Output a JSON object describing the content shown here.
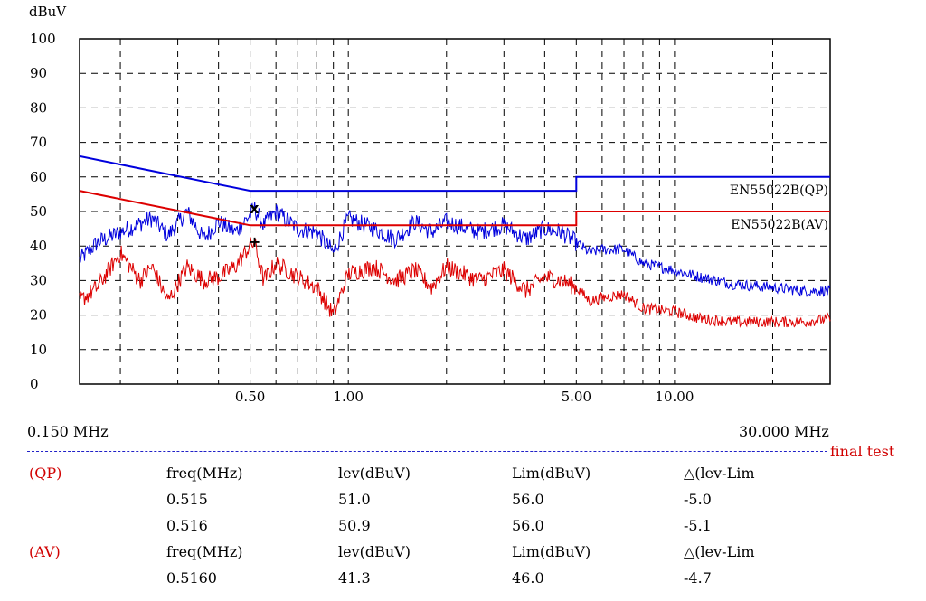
{
  "chart_data": {
    "type": "line",
    "ylabel": "dBuV",
    "ylim": [
      0,
      100
    ],
    "xlim_mhz": [
      0.15,
      30.0
    ],
    "x_scale": "log",
    "yticks": [
      "0",
      "10",
      "20",
      "30",
      "40",
      "50",
      "60",
      "70",
      "80",
      "90",
      "100"
    ],
    "xticks": [
      {
        "value": 0.5,
        "label": "0.50"
      },
      {
        "value": 1.0,
        "label": "1.00"
      },
      {
        "value": 5.0,
        "label": "5.00"
      },
      {
        "value": 10.0,
        "label": "10.00"
      }
    ],
    "x_start_label": "0.150 MHz",
    "x_end_label": "30.000 MHz",
    "grid": true,
    "colors": {
      "qp": "#0000dd",
      "av": "#dd0000"
    },
    "limits": [
      {
        "name": "EN55022B(QP)",
        "points": [
          [
            0.15,
            66
          ],
          [
            0.5,
            56
          ],
          [
            5,
            56
          ],
          [
            5,
            60
          ],
          [
            30,
            60
          ]
        ]
      },
      {
        "name": "EN55022B(AV)",
        "points": [
          [
            0.15,
            56
          ],
          [
            0.5,
            46
          ],
          [
            5,
            46
          ],
          [
            5,
            50
          ],
          [
            30,
            50
          ]
        ]
      }
    ],
    "series": [
      {
        "key": "qp",
        "points": [
          [
            0.15,
            36
          ],
          [
            0.17,
            41
          ],
          [
            0.2,
            44
          ],
          [
            0.25,
            48
          ],
          [
            0.28,
            43
          ],
          [
            0.32,
            50
          ],
          [
            0.36,
            42
          ],
          [
            0.4,
            47
          ],
          [
            0.45,
            44
          ],
          [
            0.5,
            49
          ],
          [
            0.515,
            51
          ],
          [
            0.55,
            46
          ],
          [
            0.6,
            50
          ],
          [
            0.7,
            45
          ],
          [
            0.8,
            44
          ],
          [
            0.9,
            38
          ],
          [
            1.0,
            48
          ],
          [
            1.2,
            45
          ],
          [
            1.4,
            42
          ],
          [
            1.6,
            47
          ],
          [
            1.8,
            44
          ],
          [
            2.0,
            47
          ],
          [
            2.5,
            44
          ],
          [
            3.0,
            46
          ],
          [
            3.5,
            42
          ],
          [
            4.0,
            45
          ],
          [
            4.5,
            44
          ],
          [
            5.0,
            41
          ],
          [
            5.5,
            38
          ],
          [
            6.0,
            39
          ],
          [
            7.0,
            39
          ],
          [
            8.0,
            35
          ],
          [
            10,
            33
          ],
          [
            12,
            31
          ],
          [
            15,
            29
          ],
          [
            20,
            28
          ],
          [
            25,
            27
          ],
          [
            30,
            27
          ]
        ]
      },
      {
        "key": "av",
        "points": [
          [
            0.15,
            24
          ],
          [
            0.17,
            28
          ],
          [
            0.2,
            38
          ],
          [
            0.23,
            30
          ],
          [
            0.25,
            34
          ],
          [
            0.28,
            24
          ],
          [
            0.32,
            34
          ],
          [
            0.36,
            30
          ],
          [
            0.4,
            31
          ],
          [
            0.45,
            34
          ],
          [
            0.5,
            40
          ],
          [
            0.515,
            41
          ],
          [
            0.55,
            30
          ],
          [
            0.6,
            35
          ],
          [
            0.7,
            31
          ],
          [
            0.8,
            28
          ],
          [
            0.9,
            20
          ],
          [
            1.0,
            32
          ],
          [
            1.2,
            34
          ],
          [
            1.4,
            30
          ],
          [
            1.6,
            33
          ],
          [
            1.8,
            28
          ],
          [
            2.0,
            34
          ],
          [
            2.5,
            30
          ],
          [
            3.0,
            33
          ],
          [
            3.5,
            27
          ],
          [
            4.0,
            31
          ],
          [
            4.5,
            30
          ],
          [
            5.0,
            28
          ],
          [
            5.5,
            24
          ],
          [
            6.0,
            25
          ],
          [
            7.0,
            26
          ],
          [
            8.0,
            22
          ],
          [
            10,
            21
          ],
          [
            12,
            19
          ],
          [
            15,
            18
          ],
          [
            20,
            18
          ],
          [
            25,
            18
          ],
          [
            30,
            19
          ]
        ]
      }
    ],
    "markers": [
      {
        "symbol": "x",
        "freq": 0.515,
        "level": 51.0
      },
      {
        "symbol": "+",
        "freq": 0.516,
        "level": 41.3
      }
    ]
  },
  "footer": {
    "mode": "final test"
  },
  "table": {
    "qp": {
      "tag": "(QP)",
      "headers": [
        "freq(MHz)",
        "lev(dBuV)",
        "Lim(dBuV)",
        "△(lev-Lim"
      ],
      "rows": [
        [
          "0.515",
          "51.0",
          "56.0",
          "-5.0"
        ],
        [
          "0.516",
          "50.9",
          "56.0",
          "-5.1"
        ]
      ]
    },
    "av": {
      "tag": "(AV)",
      "headers": [
        "freq(MHz)",
        "lev(dBuV)",
        "Lim(dBuV)",
        "△(lev-Lim"
      ],
      "rows": [
        [
          "0.5160",
          "41.3",
          "46.0",
          "-4.7"
        ]
      ]
    }
  }
}
